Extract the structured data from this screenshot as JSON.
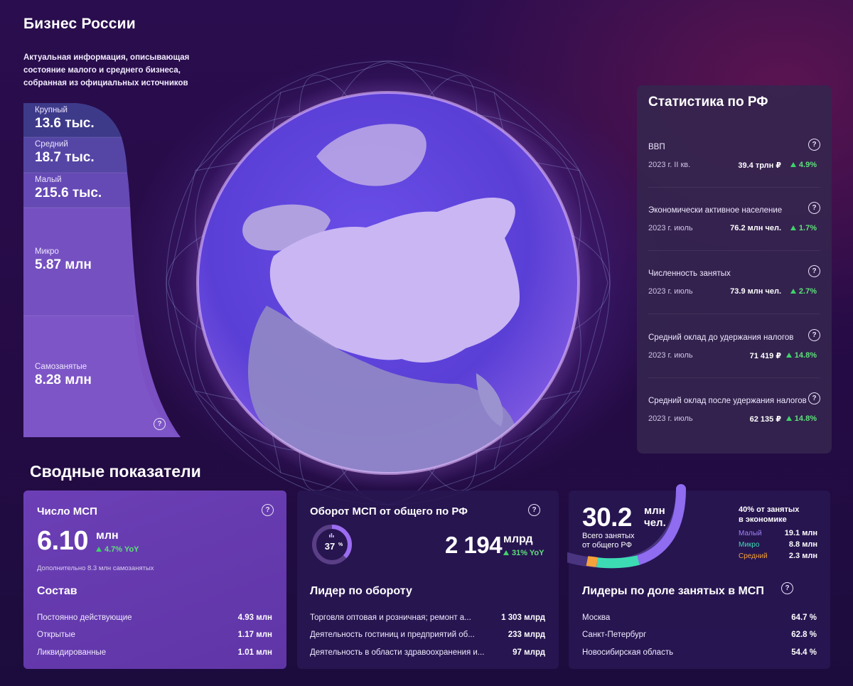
{
  "header": {
    "title": "Бизнес России",
    "description": "Актуальная информация, описывающая состояние малого и среднего бизнеса, собранная из официальных источников"
  },
  "funnel": [
    {
      "label": "Крупный",
      "value": "13.6 тыс."
    },
    {
      "label": "Средний",
      "value": "18.7 тыс."
    },
    {
      "label": "Малый",
      "value": "215.6 тыс."
    },
    {
      "label": "Микро",
      "value": "5.87 млн"
    },
    {
      "label": "Самозанятые",
      "value": "8.28 млн"
    }
  ],
  "help_glyph": "?",
  "stats": {
    "title": "Статистика по РФ",
    "items": [
      {
        "name": "ВВП",
        "date": "2023 г. II кв.",
        "value": "39.4 трлн ₽",
        "change": "4.9%"
      },
      {
        "name": "Экономически активное население",
        "date": "2023 г. июль",
        "value": "76.2 млн чел.",
        "change": "1.7%"
      },
      {
        "name": "Численность занятых",
        "date": "2023 г. июль",
        "value": "73.9 млн чел.",
        "change": "2.7%"
      },
      {
        "name": "Средний оклад до удержания налогов",
        "date": "2023 г. июль",
        "value": "71 419 ₽",
        "change": "14.8%"
      },
      {
        "name": "Средний оклад после удержания налогов",
        "date": "2023 г. июль",
        "value": "62 135 ₽",
        "change": "14.8%"
      }
    ]
  },
  "summary": {
    "title": "Сводные показатели",
    "msp": {
      "title": "Число МСП",
      "value": "6.10",
      "unit": "млн",
      "yoy": "4.7% YoY",
      "note": "Дополнительно 8.3 млн самозанятых",
      "composition_title": "Состав",
      "rows": [
        {
          "label": "Постоянно действующие",
          "value": "4.93 млн"
        },
        {
          "label": "Открытые",
          "value": "1.17 млн"
        },
        {
          "label": "Ликвидированные",
          "value": "1.01 млн"
        }
      ]
    },
    "turnover": {
      "title": "Оборот МСП от общего по РФ",
      "share_number": "37",
      "share_pct": "%",
      "share_fraction": 0.37,
      "value": "2 194",
      "unit": "млрд",
      "yoy": "31% YoY",
      "leaders_title": "Лидер по обороту",
      "rows": [
        {
          "label": "Торговля оптовая и розничная; ремонт а...",
          "value": "1 303 млрд"
        },
        {
          "label": "Деятельность гостиниц и предприятий об...",
          "value": "233 млрд"
        },
        {
          "label": "Деятельность в области здравоохранения и...",
          "value": "97 млрд"
        }
      ]
    },
    "employment": {
      "value": "30.2",
      "unit_line1": "млн",
      "unit_line2": "чел.",
      "caption_line1": "Всего занятых",
      "caption_line2": "от общего РФ",
      "share_line1": "40% от занятых",
      "share_line2": "в экономике",
      "legend": [
        {
          "label": "Малый",
          "value": "19.1 млн",
          "color": "#8f6cf0"
        },
        {
          "label": "Микро",
          "value": "8.8 млн",
          "color": "#3ddbb4"
        },
        {
          "label": "Средний",
          "value": "2.3 млн",
          "color": "#f5a23a"
        }
      ],
      "leaders_title": "Лидеры по доле занятых в МСП",
      "rows": [
        {
          "label": "Москва",
          "value": "64.7 %"
        },
        {
          "label": "Санкт-Петербург",
          "value": "62.8 %"
        },
        {
          "label": "Новосибирская область",
          "value": "54.4 %"
        }
      ]
    }
  }
}
